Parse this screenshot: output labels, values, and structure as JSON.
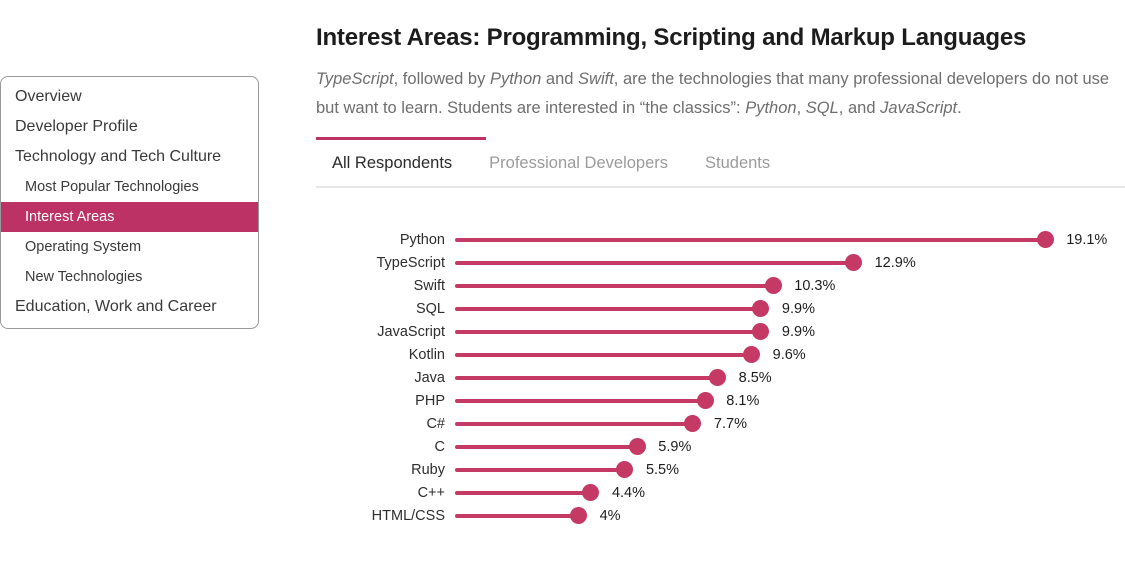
{
  "colors": {
    "accent": "#bc3264",
    "chart": "#c43a64",
    "tab_active_text": "#2b2b2b",
    "tab_inactive_text": "#9b9b9b"
  },
  "sidebar": {
    "items": [
      {
        "label": "Overview",
        "level": "main",
        "active": false
      },
      {
        "label": "Developer Profile",
        "level": "main",
        "active": false
      },
      {
        "label": "Technology and Tech Culture",
        "level": "main",
        "active": false
      },
      {
        "label": "Most Popular Technologies",
        "level": "sub",
        "active": false
      },
      {
        "label": "Interest Areas",
        "level": "sub",
        "active": true
      },
      {
        "label": "Operating System",
        "level": "sub",
        "active": false
      },
      {
        "label": "New Technologies",
        "level": "sub",
        "active": false
      },
      {
        "label": "Education, Work and Career",
        "level": "main",
        "active": false
      }
    ]
  },
  "header": {
    "title": "Interest Areas: Programming, Scripting and Markup Languages",
    "subtitle_segments": [
      {
        "text": "TypeScript",
        "italic": true
      },
      {
        "text": ", followed by ",
        "italic": false
      },
      {
        "text": "Python",
        "italic": true
      },
      {
        "text": " and ",
        "italic": false
      },
      {
        "text": "Swift",
        "italic": true
      },
      {
        "text": ", are the technologies that many professional developers do not use but want to learn. Students are interested in “the classics”: ",
        "italic": false
      },
      {
        "text": "Python",
        "italic": true
      },
      {
        "text": ", ",
        "italic": false
      },
      {
        "text": "SQL",
        "italic": true
      },
      {
        "text": ", and ",
        "italic": false
      },
      {
        "text": "JavaScript",
        "italic": true
      },
      {
        "text": ".",
        "italic": false
      }
    ]
  },
  "tabs": {
    "items": [
      {
        "label": "All Respondents",
        "active": true
      },
      {
        "label": "Professional Developers",
        "active": false
      },
      {
        "label": "Students",
        "active": false
      }
    ]
  },
  "chart_data": {
    "type": "bar",
    "variant": "lollipop",
    "orientation": "horizontal",
    "title": "Interest Areas: Programming, Scripting and Markup Languages",
    "categories": [
      "Python",
      "TypeScript",
      "Swift",
      "SQL",
      "JavaScript",
      "Kotlin",
      "Java",
      "PHP",
      "C#",
      "C",
      "Ruby",
      "C++",
      "HTML/CSS"
    ],
    "values": [
      19.1,
      12.9,
      10.3,
      9.9,
      9.9,
      9.6,
      8.5,
      8.1,
      7.7,
      5.9,
      5.5,
      4.4,
      4
    ],
    "value_labels": [
      "19.1%",
      "12.9%",
      "10.3%",
      "9.9%",
      "9.9%",
      "9.6%",
      "8.5%",
      "8.1%",
      "7.7%",
      "5.9%",
      "5.5%",
      "4.4%",
      "4%"
    ],
    "xlabel": "",
    "ylabel": "",
    "xlim": [
      0,
      20
    ],
    "grid": false,
    "legend": false
  }
}
